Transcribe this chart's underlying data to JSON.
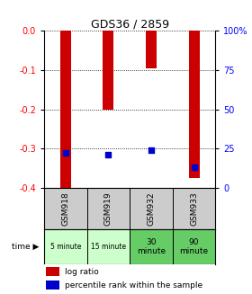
{
  "title": "GDS36 / 2859",
  "samples": [
    "GSM918",
    "GSM919",
    "GSM932",
    "GSM933"
  ],
  "times": [
    "5 minute",
    "15 minute",
    "30\nminute",
    "90\nminute"
  ],
  "time_colors": [
    "#ccffcc",
    "#ccffcc",
    "#66cc66",
    "#66cc66"
  ],
  "log_ratios": [
    -0.408,
    -0.2,
    -0.095,
    -0.375
  ],
  "percentile_ranks_pct": [
    22,
    21,
    24,
    13
  ],
  "ylim_left": [
    -0.4,
    0.0
  ],
  "ylim_right": [
    0,
    100
  ],
  "yticks_left": [
    0.0,
    -0.1,
    -0.2,
    -0.3,
    -0.4
  ],
  "yticks_right": [
    0,
    25,
    50,
    75,
    100
  ],
  "bar_color": "#cc0000",
  "dot_color": "#0000cc",
  "bar_width": 0.25,
  "bg_color": "#ffffff",
  "sample_bg": "#cccccc",
  "legend_bar_label": "log ratio",
  "legend_dot_label": "percentile rank within the sample"
}
